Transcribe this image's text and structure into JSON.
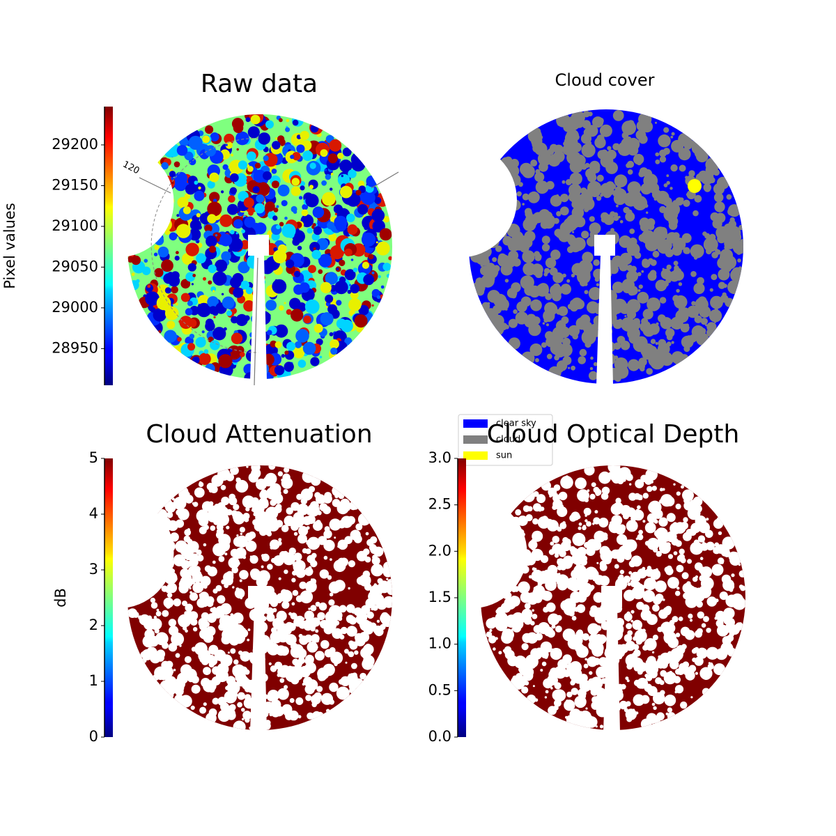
{
  "chart_data": [
    {
      "type": "image",
      "title": "Raw data",
      "colormap": "jet",
      "colorbar": {
        "label": "Pixel values",
        "lim": [
          28905,
          29247
        ],
        "ticks": [
          28950,
          29000,
          29050,
          29100,
          29150,
          29200
        ]
      },
      "annotation": "120"
    },
    {
      "type": "image",
      "title": "Cloud cover",
      "series": [
        {
          "name": "clear sky",
          "color": "#0000ff"
        },
        {
          "name": "cloud",
          "color": "#808080"
        },
        {
          "name": "sun",
          "color": "#ffff00"
        }
      ]
    },
    {
      "type": "image",
      "title": "Cloud Attenuation",
      "colormap": "jet",
      "colorbar": {
        "label": "dB",
        "lim": [
          0,
          5
        ],
        "ticks": [
          0,
          1,
          2,
          3,
          4,
          5
        ]
      }
    },
    {
      "type": "image",
      "title": "Cloud Optical Depth",
      "colormap": "jet",
      "colorbar": {
        "lim": [
          0,
          3
        ],
        "ticks": [
          {
            "value": 0,
            "label": "0.0"
          },
          0.5,
          {
            "value": 1,
            "label": "1.0"
          },
          1.5,
          {
            "value": 2,
            "label": "2.0"
          },
          2.5,
          {
            "value": 3,
            "label": "3.0"
          }
        ]
      }
    }
  ]
}
